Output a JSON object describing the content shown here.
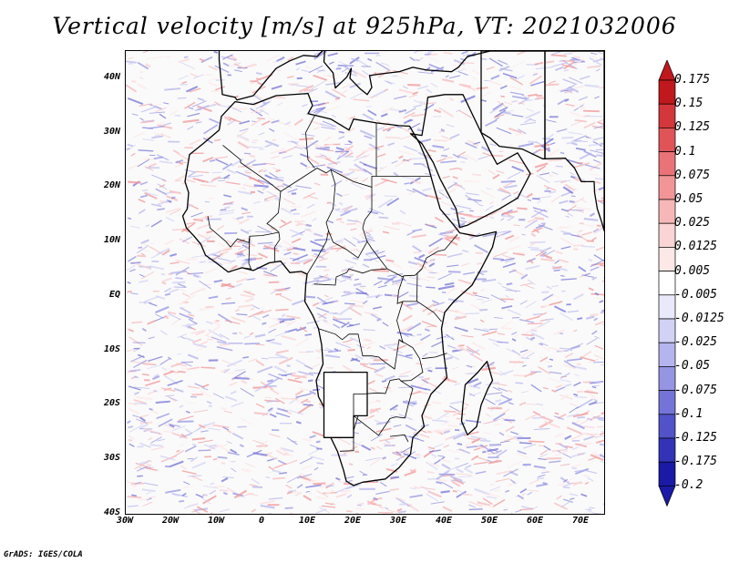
{
  "title": "Vertical velocity [m/s] at 925hPa, VT: 2021032006",
  "credit": "GrADS: IGES/COLA",
  "lat_labels": [
    "40N",
    "30N",
    "20N",
    "10N",
    "EQ",
    "10S",
    "20S",
    "30S",
    "40S"
  ],
  "lat_values": [
    40,
    30,
    20,
    10,
    0,
    -10,
    -20,
    -30,
    -40
  ],
  "lon_labels": [
    "30W",
    "20W",
    "10W",
    "0",
    "10E",
    "20E",
    "30E",
    "40E",
    "50E",
    "60E",
    "70E"
  ],
  "lon_values": [
    -30,
    -20,
    -10,
    0,
    10,
    20,
    30,
    40,
    50,
    60,
    70
  ],
  "colorbar": {
    "labels": [
      "0.175",
      "0.15",
      "0.125",
      "0.1",
      "0.075",
      "0.05",
      "0.025",
      "0.0125",
      "0.005",
      "-0.005",
      "-0.0125",
      "-0.025",
      "-0.05",
      "-0.075",
      "-0.1",
      "-0.125",
      "-0.175",
      "-0.2"
    ],
    "colors": [
      "#c0181c",
      "#d3363b",
      "#e05357",
      "#ea7377",
      "#f29597",
      "#f7b7b8",
      "#fbd4d5",
      "#fde8e8",
      "#ffffff",
      "#e9e9fb",
      "#d2d2f6",
      "#b4b4ee",
      "#9595e4",
      "#7474d8",
      "#5252c9",
      "#3333b8",
      "#1a1aa6"
    ]
  },
  "colors": {
    "positive": "#e0484c",
    "negative": "#5555d5",
    "coast": "#000000"
  }
}
